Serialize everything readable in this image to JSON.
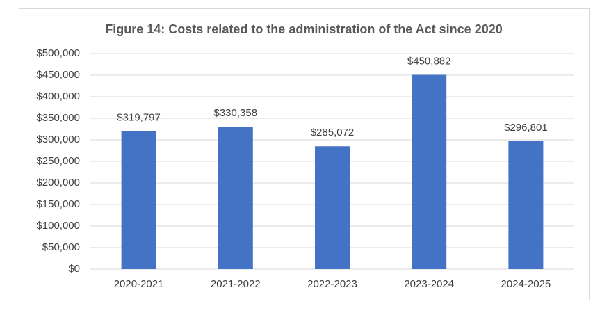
{
  "chart_data": {
    "type": "bar",
    "title": "Figure 14: Costs related to the administration  of the Act since 2020",
    "categories": [
      "2020-2021",
      "2021-2022",
      "2022-2023",
      "2023-2024",
      "2024-2025"
    ],
    "values": [
      319797,
      330358,
      285072,
      450882,
      296801
    ],
    "value_labels": [
      "$319,797",
      "$330,358",
      "$285,072",
      "$450,882",
      "$296,801"
    ],
    "color": "#4472c4",
    "ylim": [
      0,
      500000
    ],
    "yticks": [
      {
        "value": 0,
        "label": "$0"
      },
      {
        "value": 50000,
        "label": "$50,000"
      },
      {
        "value": 100000,
        "label": "$100,000"
      },
      {
        "value": 150000,
        "label": "$150,000"
      },
      {
        "value": 200000,
        "label": "$200,000"
      },
      {
        "value": 250000,
        "label": "$250,000"
      },
      {
        "value": 300000,
        "label": "$300,000"
      },
      {
        "value": 350000,
        "label": "$350,000"
      },
      {
        "value": 400000,
        "label": "$400,000"
      },
      {
        "value": 450000,
        "label": "$450,000"
      },
      {
        "value": 500000,
        "label": "$500,000"
      }
    ],
    "grid": true
  }
}
